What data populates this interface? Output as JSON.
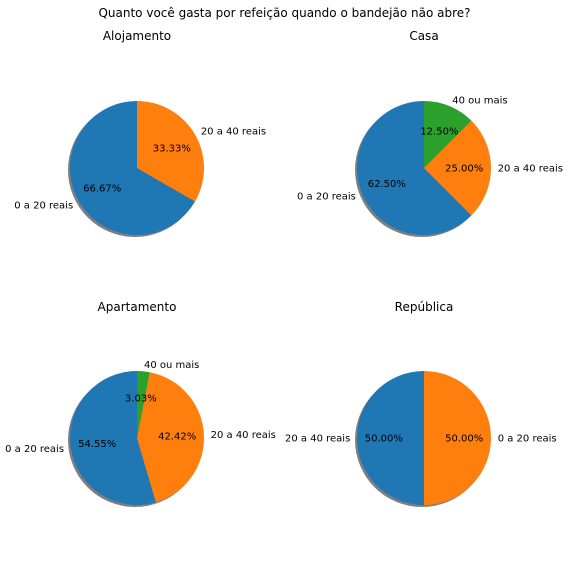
{
  "suptitle": "Quanto você gasta por refeição quando o bandejão não abre?",
  "colors": {
    "blue": "#1f77b4",
    "orange": "#ff7f0e",
    "green": "#2ca02c",
    "shadow": "#7f7f7f"
  },
  "chart_data": [
    {
      "type": "pie",
      "title": "Alojamento",
      "startangle": 90,
      "shadow": true,
      "slices": [
        {
          "label": "0 a 20 reais",
          "value": 66.67,
          "pct_label": "66.67%",
          "color": "#1f77b4"
        },
        {
          "label": "20 a 40 reais",
          "value": 33.33,
          "pct_label": "33.33%",
          "color": "#ff7f0e"
        }
      ]
    },
    {
      "type": "pie",
      "title": "Casa",
      "startangle": 90,
      "shadow": true,
      "slices": [
        {
          "label": "0 a 20 reais",
          "value": 62.5,
          "pct_label": "62.50%",
          "color": "#1f77b4"
        },
        {
          "label": "20 a 40 reais",
          "value": 25.0,
          "pct_label": "25.00%",
          "color": "#ff7f0e"
        },
        {
          "label": "40 ou mais",
          "value": 12.5,
          "pct_label": "12.50%",
          "color": "#2ca02c"
        }
      ]
    },
    {
      "type": "pie",
      "title": "Apartamento",
      "startangle": 90,
      "shadow": true,
      "slices": [
        {
          "label": "0 a 20 reais",
          "value": 54.55,
          "pct_label": "54.55%",
          "color": "#1f77b4"
        },
        {
          "label": "20 a 40 reais",
          "value": 42.42,
          "pct_label": "42.42%",
          "color": "#ff7f0e"
        },
        {
          "label": "40 ou mais",
          "value": 3.03,
          "pct_label": "3.03%",
          "color": "#2ca02c"
        }
      ]
    },
    {
      "type": "pie",
      "title": "República",
      "startangle": 90,
      "shadow": true,
      "slices": [
        {
          "label": "20 a 40 reais",
          "value": 50.0,
          "pct_label": "50.00%",
          "color": "#1f77b4"
        },
        {
          "label": "0 a 20 reais",
          "value": 50.0,
          "pct_label": "50.00%",
          "color": "#ff7f0e"
        }
      ]
    }
  ]
}
